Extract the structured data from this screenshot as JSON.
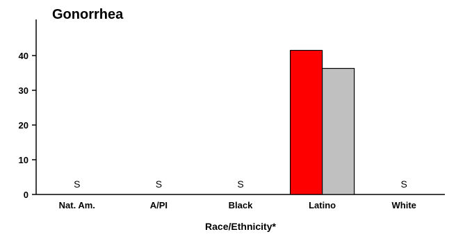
{
  "chart_data": {
    "type": "bar",
    "title": "Gonorrhea",
    "xlabel": "Race/Ethnicity*",
    "ylabel": "",
    "ylim": [
      0,
      50
    ],
    "yticks": [
      0,
      10,
      20,
      30,
      40
    ],
    "categories": [
      "Nat. Am.",
      "A/PI",
      "Black",
      "Latino",
      "White"
    ],
    "suppressed_label": "S",
    "series": [
      {
        "color": "#ff0000",
        "values": [
          null,
          null,
          null,
          41.5,
          null
        ]
      },
      {
        "color": "#c0c0c0",
        "values": [
          null,
          null,
          null,
          36.3,
          null
        ]
      }
    ],
    "grid": false,
    "legend": "none"
  }
}
